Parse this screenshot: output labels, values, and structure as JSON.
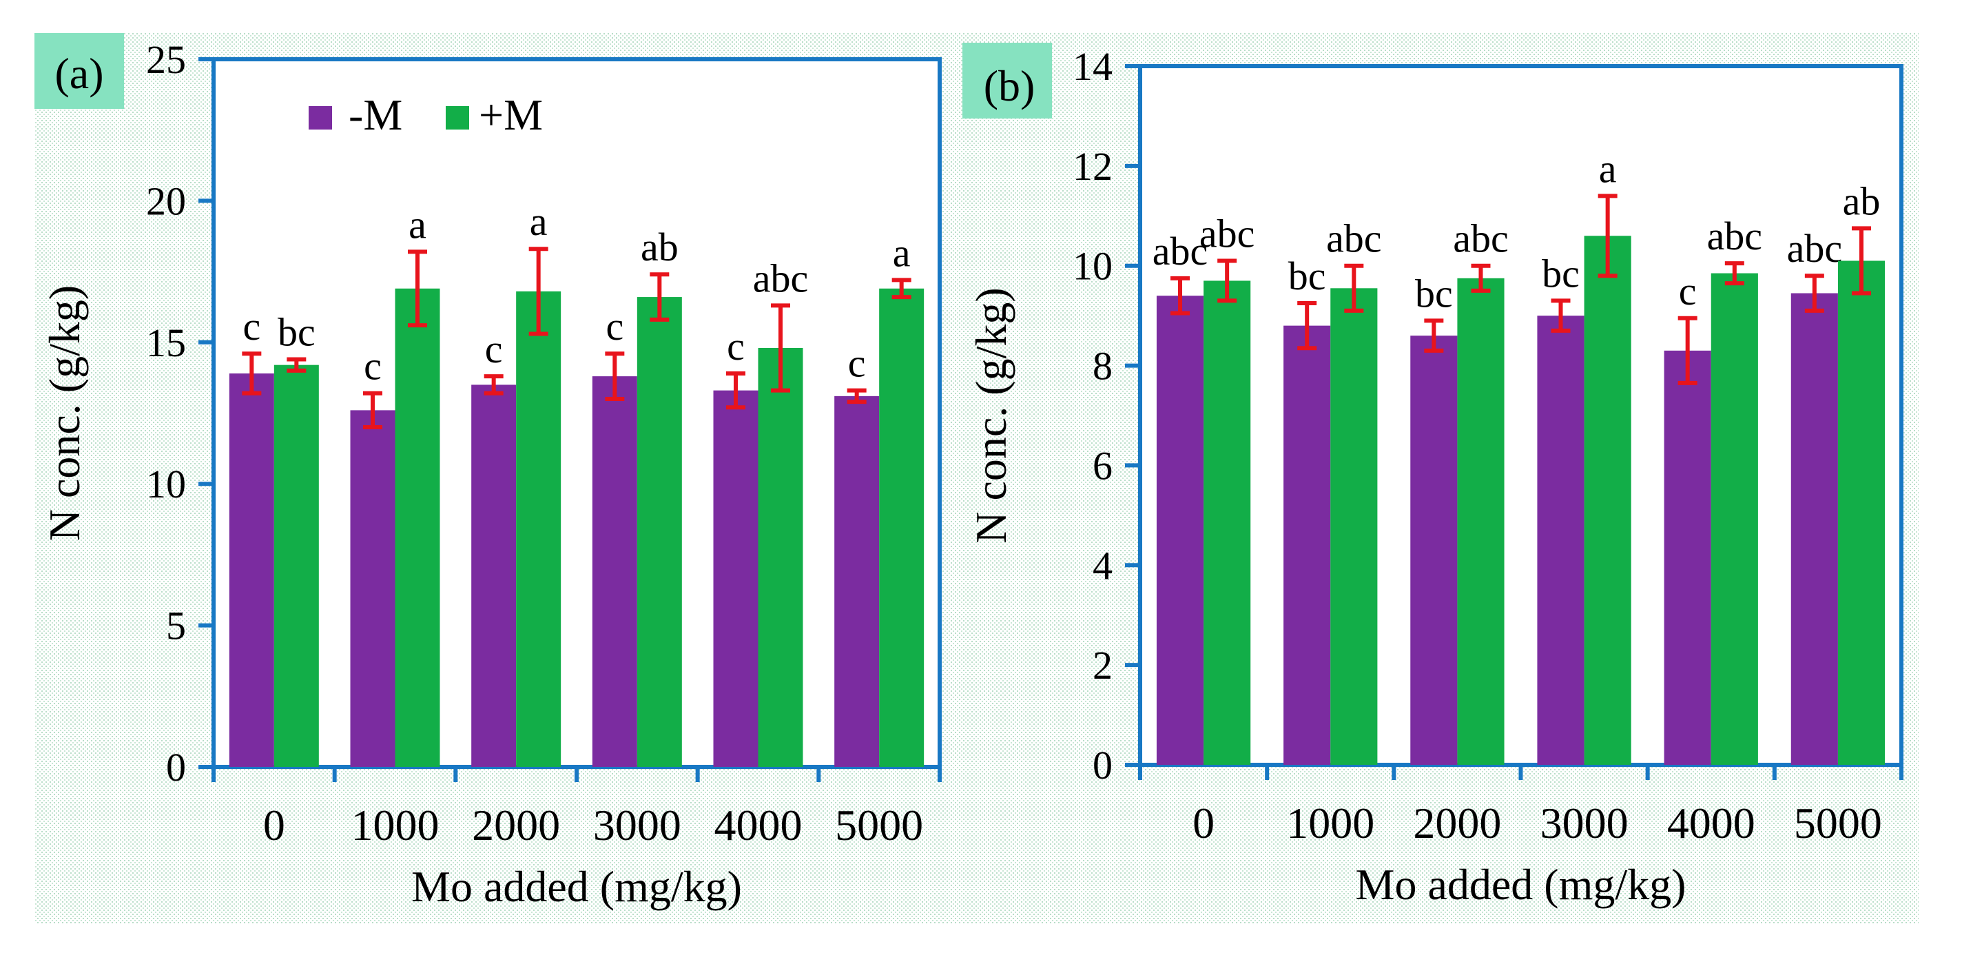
{
  "colors": {
    "minus_m": "#7B2CA0",
    "plus_m": "#12AE48",
    "axis": "#1878C4",
    "error": "#E8141C",
    "panel_tag": "#86E2C0"
  },
  "legend": {
    "labels": [
      "-M",
      "+M"
    ]
  },
  "chart_data": [
    {
      "type": "bar",
      "panel_label": "(a)",
      "title": "",
      "xlabel": "Mo added (mg/kg)",
      "ylabel": "N conc. (g/kg)",
      "ylim": [
        0,
        25
      ],
      "yticks": [
        0,
        5,
        10,
        15,
        20,
        25
      ],
      "categories": [
        "0",
        "1000",
        "2000",
        "3000",
        "4000",
        "5000"
      ],
      "series": [
        {
          "name": "-M",
          "values": [
            13.9,
            12.6,
            13.5,
            13.8,
            13.3,
            13.1
          ],
          "errors": [
            0.7,
            0.6,
            0.3,
            0.8,
            0.6,
            0.2
          ],
          "letters": [
            "c",
            "c",
            "c",
            "c",
            "c",
            "c"
          ]
        },
        {
          "name": "+M",
          "values": [
            14.2,
            16.9,
            16.8,
            16.6,
            14.8,
            16.9
          ],
          "errors": [
            0.2,
            1.3,
            1.5,
            0.8,
            1.5,
            0.3
          ],
          "letters": [
            "bc",
            "a",
            "a",
            "ab",
            "abc",
            "a"
          ]
        }
      ]
    },
    {
      "type": "bar",
      "panel_label": "(b)",
      "title": "",
      "xlabel": "Mo added (mg/kg)",
      "ylabel": "N conc. (g/kg)",
      "ylim": [
        0,
        14
      ],
      "yticks": [
        0,
        2,
        4,
        6,
        8,
        10,
        12,
        14
      ],
      "categories": [
        "0",
        "1000",
        "2000",
        "3000",
        "4000",
        "5000"
      ],
      "series": [
        {
          "name": "-M",
          "values": [
            9.4,
            8.8,
            8.6,
            9.0,
            8.3,
            9.45
          ],
          "errors": [
            0.35,
            0.45,
            0.3,
            0.3,
            0.65,
            0.35
          ],
          "letters": [
            "abc",
            "bc",
            "bc",
            "bc",
            "c",
            "abc"
          ]
        },
        {
          "name": "+M",
          "values": [
            9.7,
            9.55,
            9.75,
            10.6,
            9.85,
            10.1
          ],
          "errors": [
            0.4,
            0.45,
            0.25,
            0.8,
            0.2,
            0.65
          ],
          "letters": [
            "abc",
            "abc",
            "abc",
            "a",
            "abc",
            "ab"
          ]
        }
      ]
    }
  ]
}
